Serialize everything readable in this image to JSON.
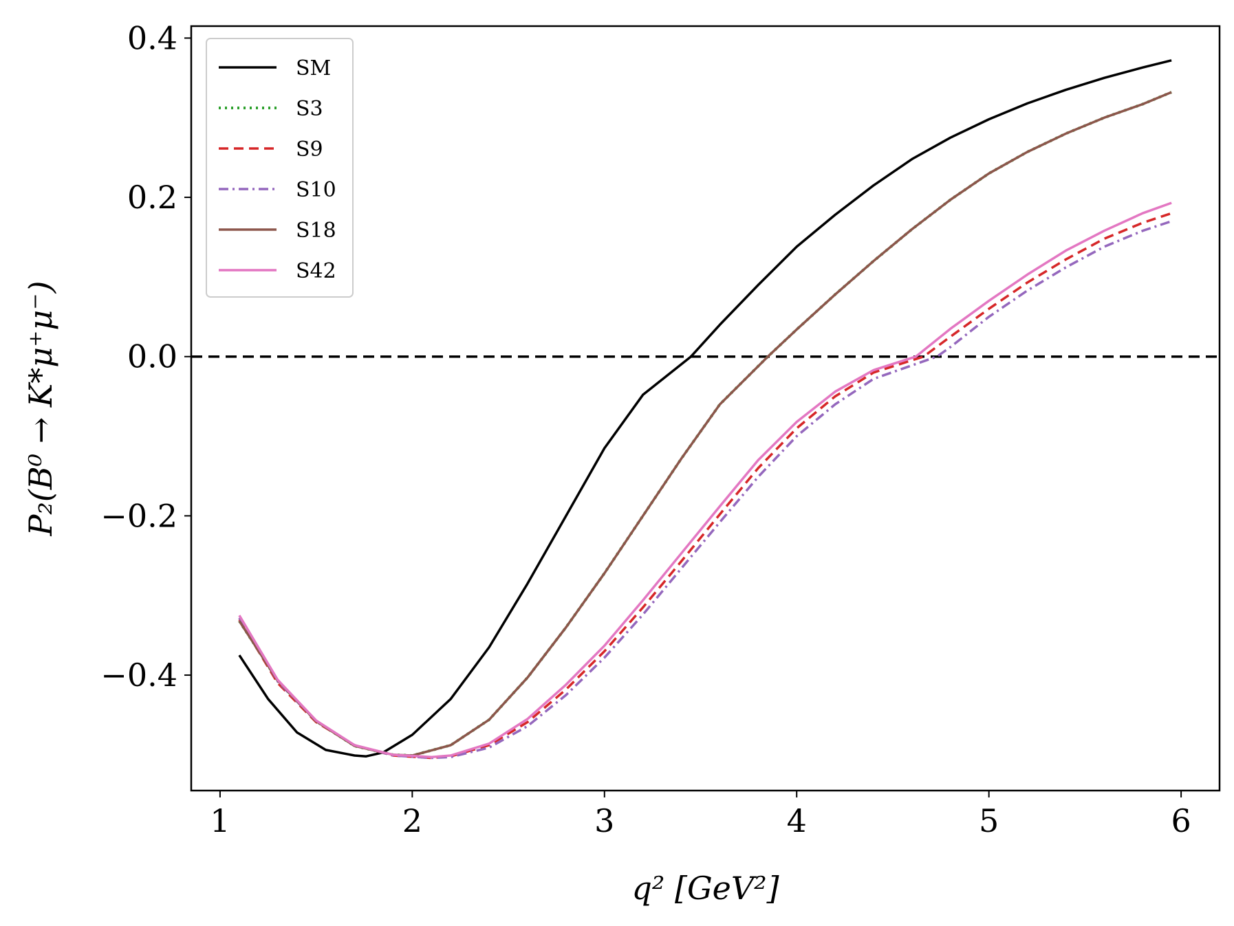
{
  "chart_data": {
    "type": "line",
    "title": "",
    "xlabel": "q² [GeV²]",
    "ylabel": "P₂(B⁰ → K*μ⁺μ⁻)",
    "xlim": [
      0.85,
      6.2
    ],
    "ylim": [
      -0.545,
      0.415
    ],
    "xticks": [
      1,
      2,
      3,
      4,
      5,
      6
    ],
    "xtick_labels": [
      "1",
      "2",
      "3",
      "4",
      "5",
      "6"
    ],
    "yticks": [
      -0.4,
      -0.2,
      0.0,
      0.2,
      0.4
    ],
    "ytick_labels": [
      "−0.4",
      "−0.2",
      "0.0",
      "0.2",
      "0.4"
    ],
    "grid": false,
    "legend_position": "top-left",
    "reference_line": {
      "y": 0.0,
      "style": "dashed",
      "color": "#000000"
    },
    "series": [
      {
        "name": "SM",
        "color": "#000000",
        "dash": "solid",
        "x": [
          1.1,
          1.25,
          1.4,
          1.55,
          1.7,
          1.76,
          1.85,
          2.0,
          2.2,
          2.4,
          2.6,
          2.8,
          3.0,
          3.2,
          3.45,
          3.6,
          3.8,
          4.0,
          4.2,
          4.4,
          4.6,
          4.8,
          5.0,
          5.2,
          5.4,
          5.6,
          5.8,
          5.95
        ],
        "y": [
          -0.375,
          -0.43,
          -0.472,
          -0.494,
          -0.501,
          -0.502,
          -0.497,
          -0.475,
          -0.43,
          -0.365,
          -0.285,
          -0.2,
          -0.115,
          -0.048,
          0.0,
          0.04,
          0.09,
          0.138,
          0.178,
          0.215,
          0.248,
          0.275,
          0.298,
          0.318,
          0.335,
          0.35,
          0.363,
          0.372
        ]
      },
      {
        "name": "S3",
        "color": "#2ca02c",
        "dash": "dotted",
        "x": [
          1.1,
          1.3,
          1.5,
          1.7,
          1.9,
          2.0,
          2.2,
          2.4,
          2.6,
          2.8,
          3.0,
          3.2,
          3.4,
          3.6,
          3.85,
          4.0,
          4.2,
          4.4,
          4.6,
          4.8,
          5.0,
          5.2,
          5.4,
          5.6,
          5.8,
          5.95
        ],
        "y": [
          -0.332,
          -0.407,
          -0.458,
          -0.489,
          -0.5,
          -0.501,
          -0.488,
          -0.456,
          -0.403,
          -0.34,
          -0.272,
          -0.2,
          -0.128,
          -0.06,
          0.0,
          0.034,
          0.078,
          0.12,
          0.16,
          0.197,
          0.23,
          0.257,
          0.28,
          0.3,
          0.317,
          0.332
        ]
      },
      {
        "name": "S9",
        "color": "#d62728",
        "dash": "dashed",
        "x": [
          1.1,
          1.3,
          1.5,
          1.7,
          1.9,
          2.1,
          2.2,
          2.4,
          2.6,
          2.8,
          3.0,
          3.2,
          3.4,
          3.6,
          3.8,
          4.0,
          4.2,
          4.4,
          4.66,
          4.8,
          5.0,
          5.2,
          5.4,
          5.6,
          5.8,
          5.95
        ],
        "y": [
          -0.33,
          -0.41,
          -0.459,
          -0.488,
          -0.501,
          -0.504,
          -0.502,
          -0.488,
          -0.459,
          -0.418,
          -0.37,
          -0.315,
          -0.257,
          -0.198,
          -0.14,
          -0.09,
          -0.05,
          -0.02,
          0.0,
          0.025,
          0.06,
          0.093,
          0.122,
          0.148,
          0.168,
          0.18
        ]
      },
      {
        "name": "S10",
        "color": "#9467bd",
        "dash": "dashdot",
        "x": [
          1.1,
          1.3,
          1.5,
          1.7,
          1.9,
          2.1,
          2.2,
          2.4,
          2.6,
          2.8,
          3.0,
          3.2,
          3.4,
          3.6,
          3.8,
          4.0,
          4.2,
          4.4,
          4.73,
          4.8,
          5.0,
          5.2,
          5.4,
          5.6,
          5.8,
          5.95
        ],
        "y": [
          -0.328,
          -0.408,
          -0.458,
          -0.488,
          -0.501,
          -0.504,
          -0.503,
          -0.491,
          -0.464,
          -0.425,
          -0.378,
          -0.324,
          -0.266,
          -0.208,
          -0.151,
          -0.1,
          -0.06,
          -0.028,
          0.0,
          0.012,
          0.05,
          0.083,
          0.112,
          0.138,
          0.158,
          0.17
        ]
      },
      {
        "name": "S18",
        "color": "#8c564b",
        "dash": "solid",
        "x": [
          1.1,
          1.3,
          1.5,
          1.7,
          1.9,
          2.0,
          2.2,
          2.4,
          2.6,
          2.8,
          3.0,
          3.2,
          3.4,
          3.6,
          3.85,
          4.0,
          4.2,
          4.4,
          4.6,
          4.8,
          5.0,
          5.2,
          5.4,
          5.6,
          5.8,
          5.95
        ],
        "y": [
          -0.332,
          -0.407,
          -0.458,
          -0.489,
          -0.5,
          -0.501,
          -0.488,
          -0.456,
          -0.403,
          -0.34,
          -0.272,
          -0.2,
          -0.128,
          -0.06,
          0.0,
          0.034,
          0.078,
          0.12,
          0.16,
          0.197,
          0.23,
          0.257,
          0.28,
          0.3,
          0.317,
          0.332
        ]
      },
      {
        "name": "S42",
        "color": "#e377c2",
        "dash": "solid",
        "x": [
          1.1,
          1.3,
          1.5,
          1.7,
          1.9,
          2.1,
          2.2,
          2.4,
          2.6,
          2.8,
          3.0,
          3.2,
          3.4,
          3.6,
          3.8,
          4.0,
          4.2,
          4.4,
          4.62,
          4.8,
          5.0,
          5.2,
          5.4,
          5.6,
          5.8,
          5.95
        ],
        "y": [
          -0.325,
          -0.406,
          -0.457,
          -0.488,
          -0.5,
          -0.503,
          -0.501,
          -0.486,
          -0.455,
          -0.412,
          -0.363,
          -0.306,
          -0.247,
          -0.188,
          -0.13,
          -0.082,
          -0.044,
          -0.017,
          0.0,
          0.035,
          0.07,
          0.103,
          0.133,
          0.158,
          0.18,
          0.193
        ]
      }
    ]
  }
}
